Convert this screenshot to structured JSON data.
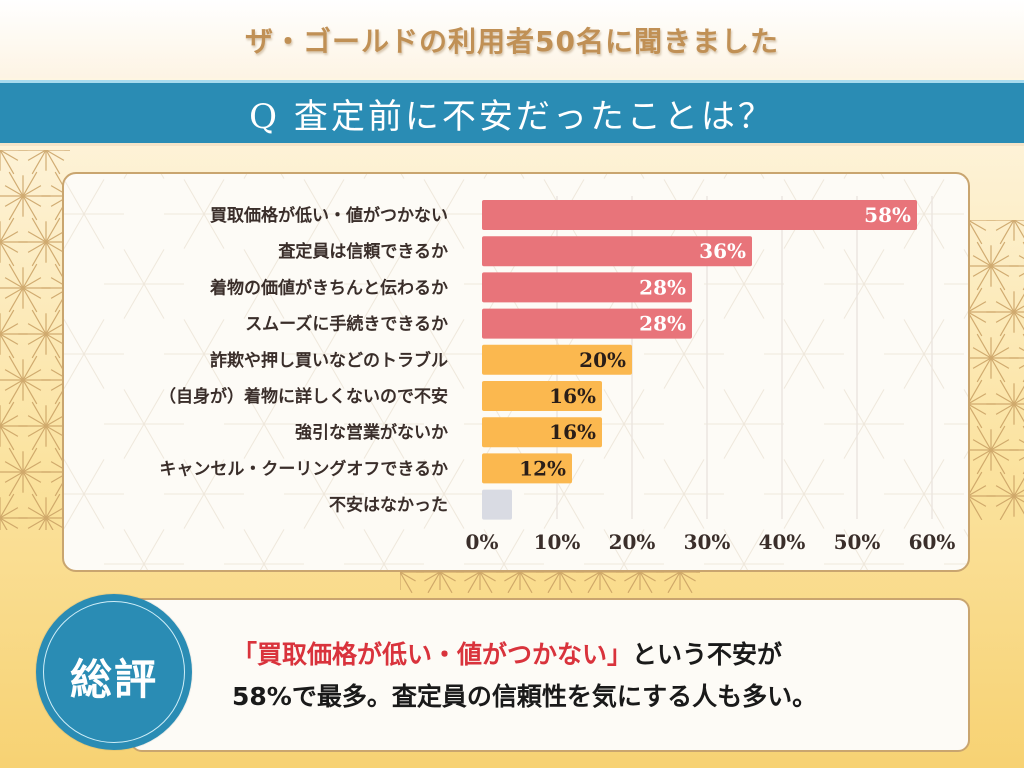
{
  "header": {
    "subtitle": "ザ・ゴールドの利用者50名に聞きました",
    "title": "Q 査定前に不安だったことは？"
  },
  "colors": {
    "title_bar": "#2a8cb4",
    "subtitle": "#c09055",
    "bar_top": "#e8747a",
    "bar_mid": "#fbb84f",
    "bar_none": "#d9dbe3",
    "highlight": "#d9333c"
  },
  "chart_data": {
    "type": "bar",
    "orientation": "horizontal",
    "title": "Q 査定前に不安だったことは？",
    "xlabel": "",
    "ylabel": "",
    "xlim": [
      0,
      60
    ],
    "x_ticks": [
      "0%",
      "10%",
      "20%",
      "30%",
      "40%",
      "50%",
      "60%"
    ],
    "grid": true,
    "categories": [
      "買取価格が低い・値がつかない",
      "査定員は信頼できるか",
      "着物の価値がきちんと伝わるか",
      "スムーズに手続きできるか",
      "詐欺や押し買いなどのトラブル",
      "（自身が）着物に詳しくないので不安",
      "強引な営業がないか",
      "キャンセル・クーリングオフできるか",
      "不安はなかった"
    ],
    "values": [
      58,
      36,
      28,
      28,
      20,
      16,
      16,
      12,
      4
    ],
    "value_labels": [
      "58%",
      "36%",
      "28%",
      "28%",
      "20%",
      "16%",
      "16%",
      "12%",
      ""
    ],
    "bar_groups": [
      "top",
      "top",
      "top",
      "top",
      "mid",
      "mid",
      "mid",
      "mid",
      "none"
    ]
  },
  "summary": {
    "badge": "総評",
    "highlight": "「買取価格が低い・値がつかない」",
    "line1_rest": "という不安が",
    "line2": "58%で最多。査定員の信頼性を気にする人も多い。"
  }
}
